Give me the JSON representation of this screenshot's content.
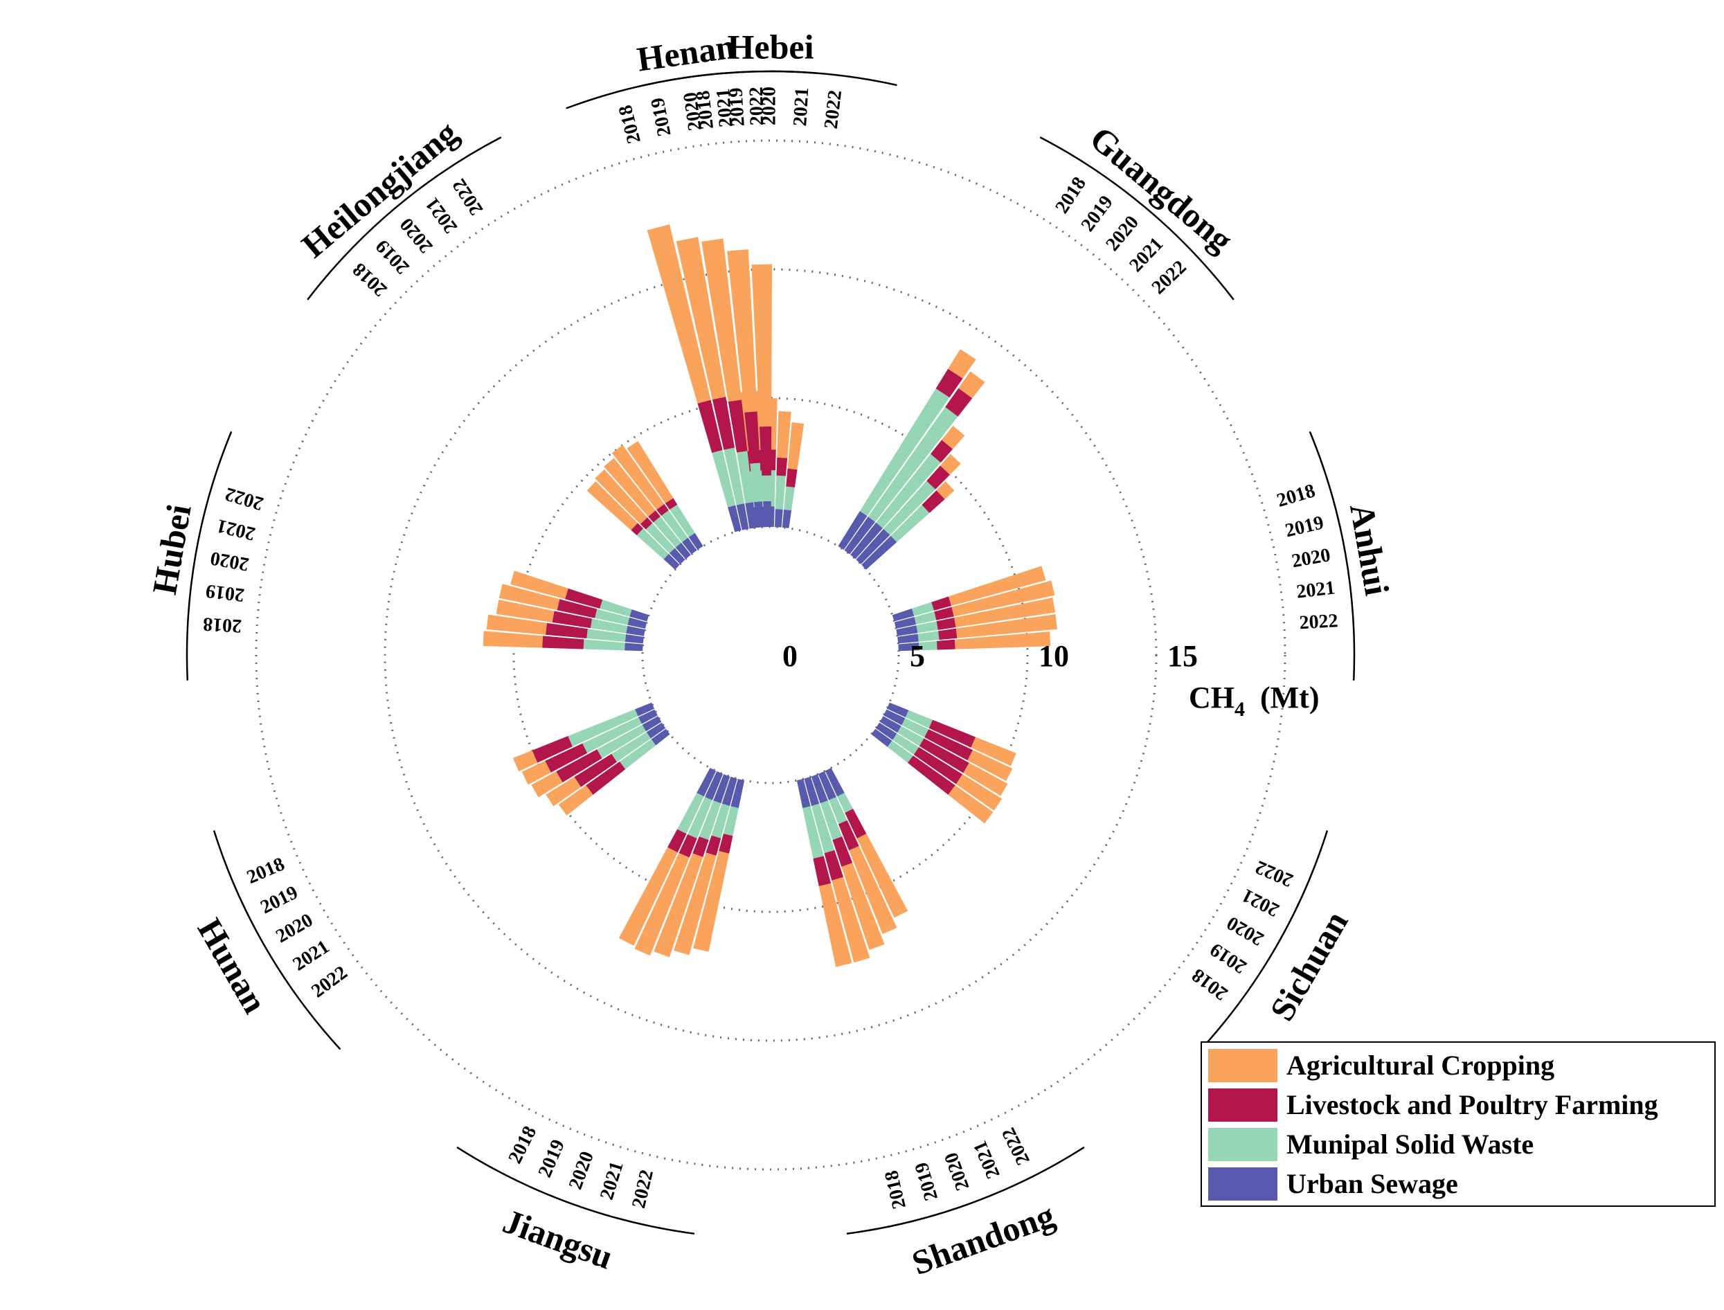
{
  "chart_data": {
    "type": "circular-stacked-bar",
    "unit_label": "CH",
    "unit_subscript": "4",
    "unit_suffix": "(Mt)",
    "radial_ticks": [
      "0",
      "5",
      "10",
      "15"
    ],
    "radial_range": [
      0,
      15
    ],
    "years": [
      "2018",
      "2019",
      "2020",
      "2021",
      "2022"
    ],
    "categories": [
      "Agricultural Cropping",
      "Livestock and Poultry Farming",
      "Munipal Solid Waste",
      "Urban Sewage"
    ],
    "colors": {
      "Agricultural Cropping": "#F9A35C",
      "Livestock and Poultry Farming": "#B3164A",
      "Munipal Solid Waste": "#96D6B7",
      "Urban Sewage": "#575AAD"
    },
    "legend_position": "bottom-right",
    "provinces": [
      {
        "name": "Hebei",
        "center_deg": 0,
        "values": [
          {
            "year": "2018",
            "agri": 2.3,
            "livestock": 0.8,
            "msw": 1.4,
            "sewage": 0.8
          },
          {
            "year": "2019",
            "agri": 2.3,
            "livestock": 0.8,
            "msw": 1.4,
            "sewage": 0.8
          },
          {
            "year": "2020",
            "agri": 2.0,
            "livestock": 0.8,
            "msw": 1.4,
            "sewage": 0.8
          },
          {
            "year": "2021",
            "agri": 1.8,
            "livestock": 0.7,
            "msw": 1.3,
            "sewage": 0.7
          },
          {
            "year": "2022",
            "agri": 1.8,
            "livestock": 0.7,
            "msw": 0.9,
            "sewage": 0.7
          }
        ]
      },
      {
        "name": "Guangdong",
        "center_deg": 40,
        "values": [
          {
            "year": "2018",
            "agri": 0.9,
            "livestock": 0.9,
            "msw": 5.6,
            "sewage": 1.6
          },
          {
            "year": "2019",
            "agri": 0.8,
            "livestock": 0.9,
            "msw": 5.2,
            "sewage": 1.6
          },
          {
            "year": "2020",
            "agri": 0.7,
            "livestock": 0.7,
            "msw": 3.4,
            "sewage": 1.6
          },
          {
            "year": "2021",
            "agri": 0.6,
            "livestock": 0.8,
            "msw": 2.5,
            "sewage": 1.6
          },
          {
            "year": "2022",
            "agri": 0.5,
            "livestock": 0.8,
            "msw": 1.7,
            "sewage": 1.6
          }
        ]
      },
      {
        "name": "Anhui",
        "center_deg": 80,
        "values": [
          {
            "year": "2018",
            "agri": 3.8,
            "livestock": 0.7,
            "msw": 0.8,
            "sewage": 0.8
          },
          {
            "year": "2019",
            "agri": 4.0,
            "livestock": 0.7,
            "msw": 0.8,
            "sewage": 0.8
          },
          {
            "year": "2020",
            "agri": 3.9,
            "livestock": 0.7,
            "msw": 0.8,
            "sewage": 0.8
          },
          {
            "year": "2021",
            "agri": 3.9,
            "livestock": 0.7,
            "msw": 0.8,
            "sewage": 0.8
          },
          {
            "year": "2022",
            "agri": 3.7,
            "livestock": 0.7,
            "msw": 0.7,
            "sewage": 0.8
          }
        ]
      },
      {
        "name": "Sichuan",
        "center_deg": 120,
        "values": [
          {
            "year": "2018",
            "agri": 1.8,
            "livestock": 2.0,
            "msw": 1.0,
            "sewage": 0.8
          },
          {
            "year": "2019",
            "agri": 1.8,
            "livestock": 2.0,
            "msw": 1.0,
            "sewage": 0.8
          },
          {
            "year": "2020",
            "agri": 1.7,
            "livestock": 2.0,
            "msw": 1.0,
            "sewage": 0.8
          },
          {
            "year": "2021",
            "agri": 1.7,
            "livestock": 1.9,
            "msw": 1.0,
            "sewage": 0.8
          },
          {
            "year": "2022",
            "agri": 1.7,
            "livestock": 1.8,
            "msw": 1.0,
            "sewage": 0.8
          }
        ]
      },
      {
        "name": "Shandong",
        "center_deg": 160,
        "values": [
          {
            "year": "2018",
            "agri": 3.2,
            "livestock": 1.1,
            "msw": 2.0,
            "sewage": 1.1
          },
          {
            "year": "2019",
            "agri": 3.3,
            "livestock": 1.1,
            "msw": 1.9,
            "sewage": 1.1
          },
          {
            "year": "2020",
            "agri": 3.4,
            "livestock": 1.1,
            "msw": 1.5,
            "sewage": 1.1
          },
          {
            "year": "2021",
            "agri": 3.5,
            "livestock": 1.1,
            "msw": 1.0,
            "sewage": 1.1
          },
          {
            "year": "2022",
            "agri": 3.4,
            "livestock": 1.1,
            "msw": 0.7,
            "sewage": 1.1
          }
        ]
      },
      {
        "name": "Jiangsu",
        "center_deg": 200,
        "values": [
          {
            "year": "2018",
            "agri": 4.0,
            "livestock": 0.8,
            "msw": 1.6,
            "sewage": 1.1
          },
          {
            "year": "2019",
            "agri": 4.1,
            "livestock": 0.8,
            "msw": 1.6,
            "sewage": 1.1
          },
          {
            "year": "2020",
            "agri": 4.1,
            "livestock": 0.7,
            "msw": 1.5,
            "sewage": 1.1
          },
          {
            "year": "2021",
            "agri": 4.0,
            "livestock": 0.7,
            "msw": 1.3,
            "sewage": 1.1
          },
          {
            "year": "2022",
            "agri": 3.9,
            "livestock": 0.7,
            "msw": 1.1,
            "sewage": 1.1
          }
        ]
      },
      {
        "name": "Hunan",
        "center_deg": 240,
        "values": [
          {
            "year": "2018",
            "agri": 0.8,
            "livestock": 1.5,
            "msw": 2.8,
            "sewage": 0.7
          },
          {
            "year": "2019",
            "agri": 1.0,
            "livestock": 1.6,
            "msw": 2.4,
            "sewage": 0.7
          },
          {
            "year": "2020",
            "agri": 1.1,
            "livestock": 1.8,
            "msw": 2.0,
            "sewage": 0.7
          },
          {
            "year": "2021",
            "agri": 1.3,
            "livestock": 1.7,
            "msw": 1.6,
            "sewage": 0.7
          },
          {
            "year": "2022",
            "agri": 1.3,
            "livestock": 1.6,
            "msw": 1.5,
            "sewage": 0.7
          }
        ]
      },
      {
        "name": "Hubei",
        "center_deg": 280,
        "values": [
          {
            "year": "2018",
            "agri": 2.3,
            "livestock": 1.6,
            "msw": 1.6,
            "sewage": 0.7
          },
          {
            "year": "2019",
            "agri": 2.3,
            "livestock": 1.6,
            "msw": 1.5,
            "sewage": 0.7
          },
          {
            "year": "2020",
            "agri": 2.2,
            "livestock": 1.5,
            "msw": 1.4,
            "sewage": 0.7
          },
          {
            "year": "2021",
            "agri": 2.3,
            "livestock": 1.5,
            "msw": 1.3,
            "sewage": 0.7
          },
          {
            "year": "2022",
            "agri": 2.2,
            "livestock": 1.4,
            "msw": 1.2,
            "sewage": 0.7
          }
        ]
      },
      {
        "name": "Heilongjiang",
        "center_deg": 320,
        "values": [
          {
            "year": "2018",
            "agri": 2.3,
            "livestock": 0.3,
            "msw": 1.4,
            "sewage": 0.6
          },
          {
            "year": "2019",
            "agri": 2.5,
            "livestock": 0.3,
            "msw": 1.3,
            "sewage": 0.6
          },
          {
            "year": "2020",
            "agri": 2.6,
            "livestock": 0.3,
            "msw": 1.3,
            "sewage": 0.6
          },
          {
            "year": "2021",
            "agri": 2.8,
            "livestock": 0.3,
            "msw": 1.3,
            "sewage": 0.6
          },
          {
            "year": "2022",
            "agri": 2.6,
            "livestock": 0.3,
            "msw": 1.3,
            "sewage": 0.6
          }
        ]
      },
      {
        "name": "Henan",
        "center_deg": 352,
        "values": [
          {
            "year": "2018",
            "agri": 7.0,
            "livestock": 2.0,
            "msw": 2.2,
            "sewage": 1.0
          },
          {
            "year": "2019",
            "agri": 6.3,
            "livestock": 2.0,
            "msw": 2.2,
            "sewage": 1.0
          },
          {
            "year": "2020",
            "agri": 6.3,
            "livestock": 2.0,
            "msw": 2.0,
            "sewage": 1.0
          },
          {
            "year": "2021",
            "agri": 6.3,
            "livestock": 2.0,
            "msw": 1.5,
            "sewage": 1.0
          },
          {
            "year": "2022",
            "agri": 6.3,
            "livestock": 1.9,
            "msw": 1.0,
            "sewage": 1.0
          }
        ]
      }
    ]
  }
}
